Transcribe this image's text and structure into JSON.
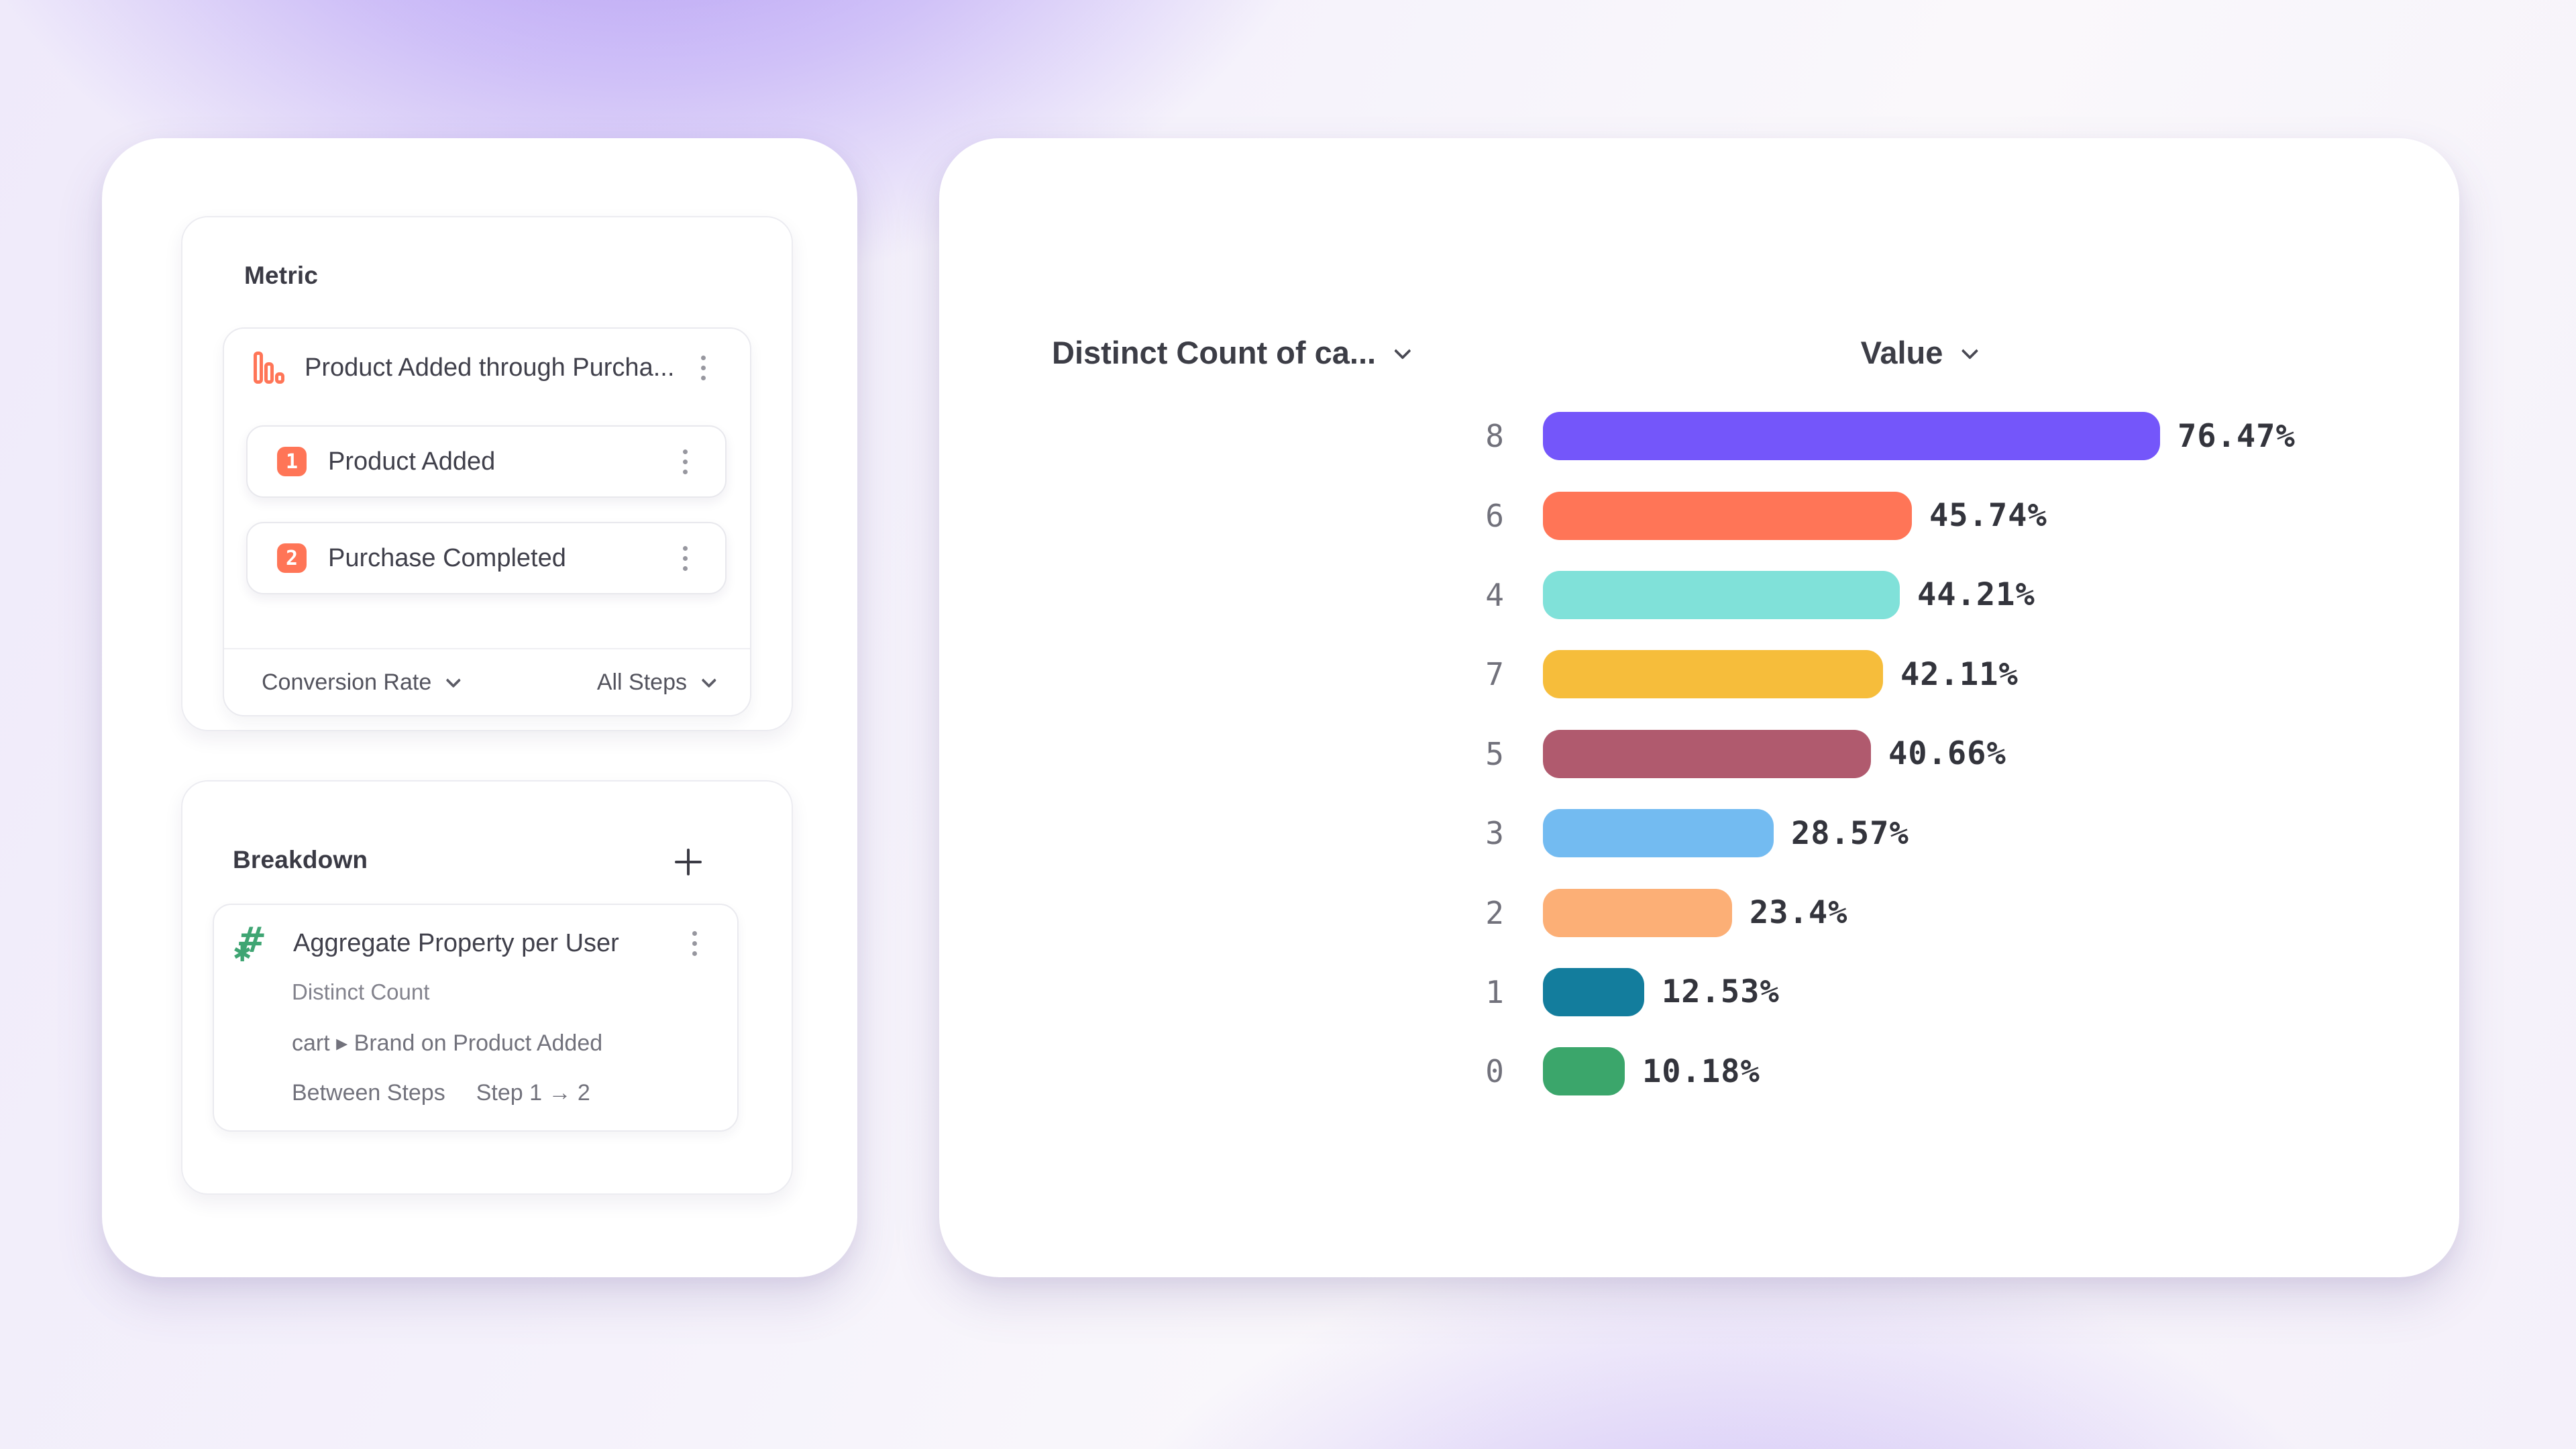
{
  "theme": {
    "accent_orange": "#FF7557",
    "accent_green": "#3FA573",
    "panel_background": "#ffffff"
  },
  "metric_section": {
    "title": "Metric",
    "funnel": {
      "icon": "funnel-bar-chart-icon",
      "name": "Product Added through Purcha...",
      "steps": [
        {
          "number": "1",
          "label": "Product Added"
        },
        {
          "number": "2",
          "label": "Purchase Completed"
        }
      ],
      "measure_dropdown": "Conversion Rate",
      "steps_dropdown": "All Steps"
    }
  },
  "breakdown_section": {
    "title": "Breakdown",
    "item": {
      "icon": "numeric-property-icon",
      "name": "Aggregate Property per User",
      "aggregation": "Distinct Count",
      "property_path": "cart ▸ Brand on Product Added",
      "scope_label": "Between Steps",
      "scope_value": "Step 1 → 2"
    }
  },
  "chart_data": {
    "type": "bar",
    "orientation": "horizontal",
    "title": "",
    "column_headers": {
      "category": "Distinct Count of ca...",
      "value": "Value"
    },
    "categories": [
      "8",
      "6",
      "4",
      "7",
      "5",
      "3",
      "2",
      "1",
      "0"
    ],
    "values": [
      76.47,
      45.74,
      44.21,
      42.11,
      40.66,
      28.57,
      23.4,
      12.53,
      10.18
    ],
    "value_labels": [
      "76.47%",
      "45.74%",
      "44.21%",
      "42.11%",
      "40.66%",
      "28.57%",
      "23.4%",
      "12.53%",
      "10.18%"
    ],
    "bar_colors": [
      "#7456FA",
      "#FF7557",
      "#80E1D9",
      "#F6BD3B",
      "#B05A6E",
      "#73BBF1",
      "#FCAF76",
      "#137D9D",
      "#3BA66B"
    ],
    "xlim": [
      0,
      100
    ],
    "grid": false,
    "legend": false
  }
}
